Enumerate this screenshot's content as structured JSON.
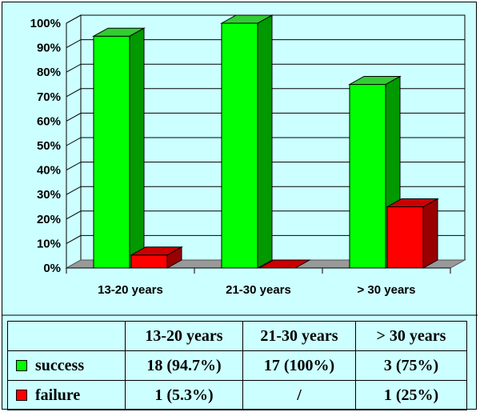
{
  "colors": {
    "background": "#ccffff",
    "success": "#00ff00",
    "success_side": "#009900",
    "success_top": "#33cc33",
    "failure": "#ff0000",
    "failure_side": "#990000",
    "failure_top": "#cc0000",
    "floor": "#999999"
  },
  "chart_data": {
    "type": "bar",
    "categories": [
      "13-20 years",
      "21-30 years",
      "> 30 years"
    ],
    "series": [
      {
        "name": "success",
        "values": [
          94.7,
          100,
          75
        ]
      },
      {
        "name": "failure",
        "values": [
          5.3,
          0,
          25
        ]
      }
    ],
    "title": "",
    "xlabel": "",
    "ylabel": "",
    "ylim": [
      0,
      100
    ],
    "yticks": [
      "0%",
      "10%",
      "20%",
      "30%",
      "40%",
      "50%",
      "60%",
      "70%",
      "80%",
      "90%",
      "100%"
    ],
    "grid": true,
    "legend": "table-below"
  },
  "table": {
    "headers": [
      "13-20 years",
      "21-30 years",
      "> 30 years"
    ],
    "rows": [
      {
        "label": "success",
        "swatch": "success",
        "cells": [
          "18 (94.7%)",
          "17 (100%)",
          "3 (75%)"
        ]
      },
      {
        "label": "failure",
        "swatch": "failure",
        "cells": [
          "1 (5.3%)",
          "/",
          "1 (25%)"
        ]
      }
    ]
  }
}
